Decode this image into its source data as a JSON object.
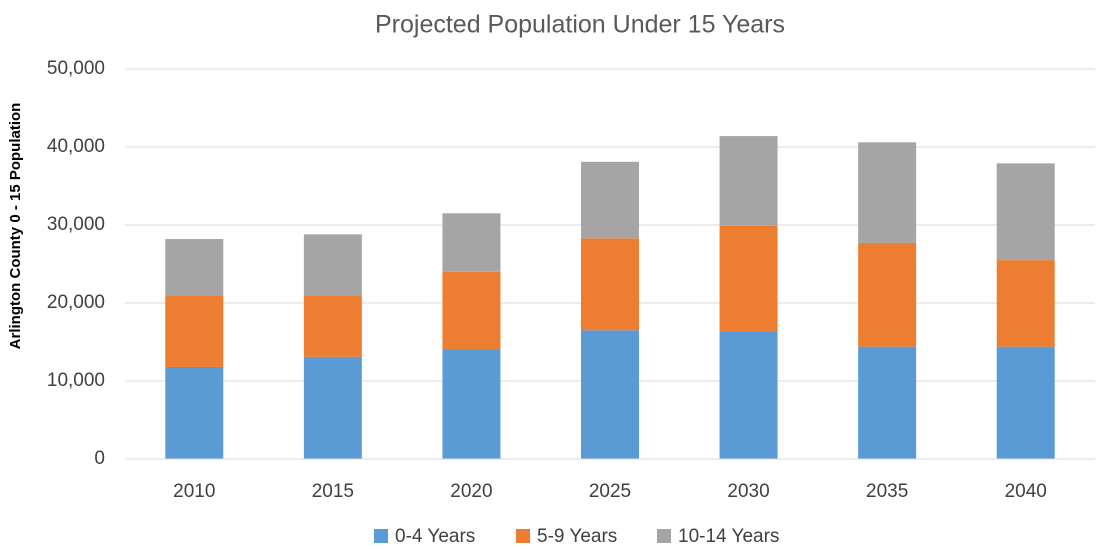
{
  "chart_data": {
    "type": "bar",
    "stacked": true,
    "title": "Projected Population Under 15 Years",
    "y_label": "Arlington County 0 - 15 Population",
    "categories": [
      "2010",
      "2015",
      "2020",
      "2025",
      "2030",
      "2035",
      "2040"
    ],
    "series": [
      {
        "name": "0-4 Years",
        "color": "#5b9bd5",
        "values": [
          11800,
          13100,
          14100,
          16500,
          16400,
          14400,
          14400
        ]
      },
      {
        "name": "5-9 Years",
        "color": "#ed7d31",
        "values": [
          9100,
          7900,
          9900,
          11800,
          13500,
          13300,
          11100
        ]
      },
      {
        "name": "10-14 Years",
        "color": "#a5a5a5",
        "values": [
          7300,
          7800,
          7500,
          9800,
          11500,
          12900,
          12400
        ]
      }
    ],
    "ylim": [
      0,
      50000
    ],
    "yticks": [
      0,
      {
        "value": 10000,
        "label": "10,000"
      },
      {
        "value": 20000,
        "label": "20,000"
      },
      {
        "value": 30000,
        "label": "30,000"
      },
      {
        "value": 40000,
        "label": "40,000"
      },
      {
        "value": 50000,
        "label": "50,000"
      }
    ],
    "grid": true,
    "legend": "bottom"
  }
}
